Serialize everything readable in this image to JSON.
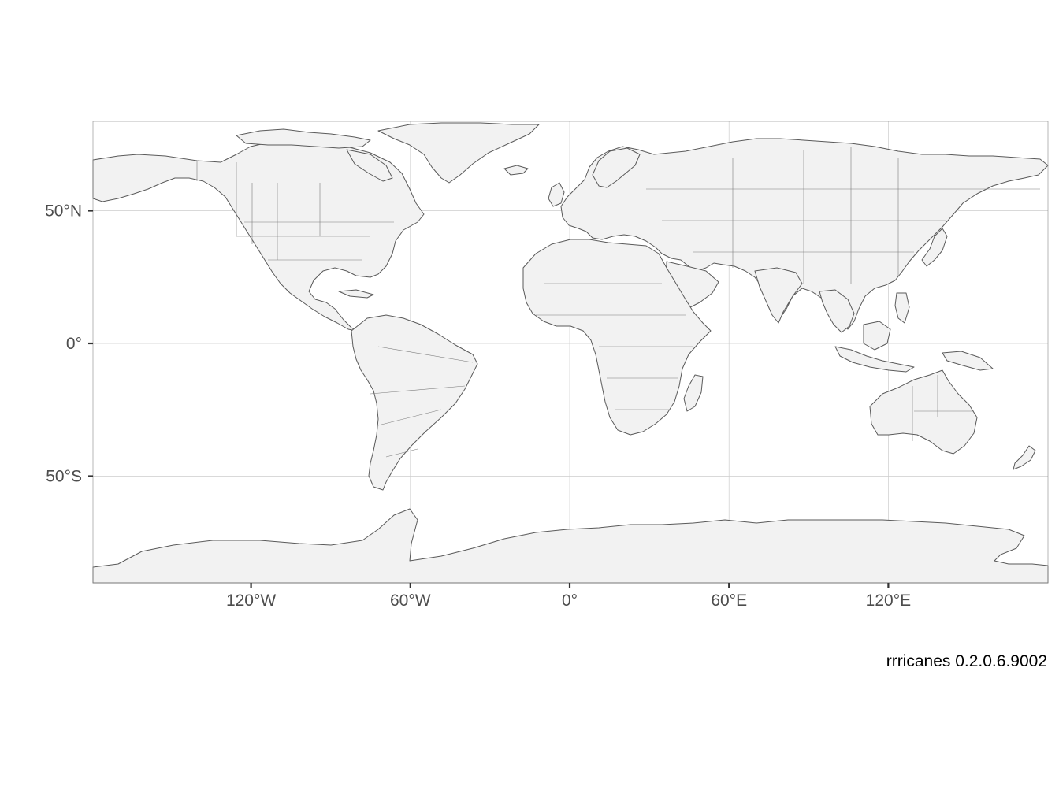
{
  "map": {
    "projection": "equirectangular",
    "x_axis": {
      "ticks": [
        {
          "value": -120,
          "label": "120°W"
        },
        {
          "value": -60,
          "label": "60°W"
        },
        {
          "value": 0,
          "label": "0°"
        },
        {
          "value": 60,
          "label": "60°E"
        },
        {
          "value": 120,
          "label": "120°E"
        }
      ]
    },
    "y_axis": {
      "ticks": [
        {
          "value": 50,
          "label": "50°N"
        },
        {
          "value": 0,
          "label": "0°"
        },
        {
          "value": -50,
          "label": "50°S"
        }
      ]
    },
    "grid": true,
    "land_color": "#f2f2f2",
    "border_color": "#5a5a5a",
    "caption": "rrricanes 0.2.0.6.9002"
  }
}
